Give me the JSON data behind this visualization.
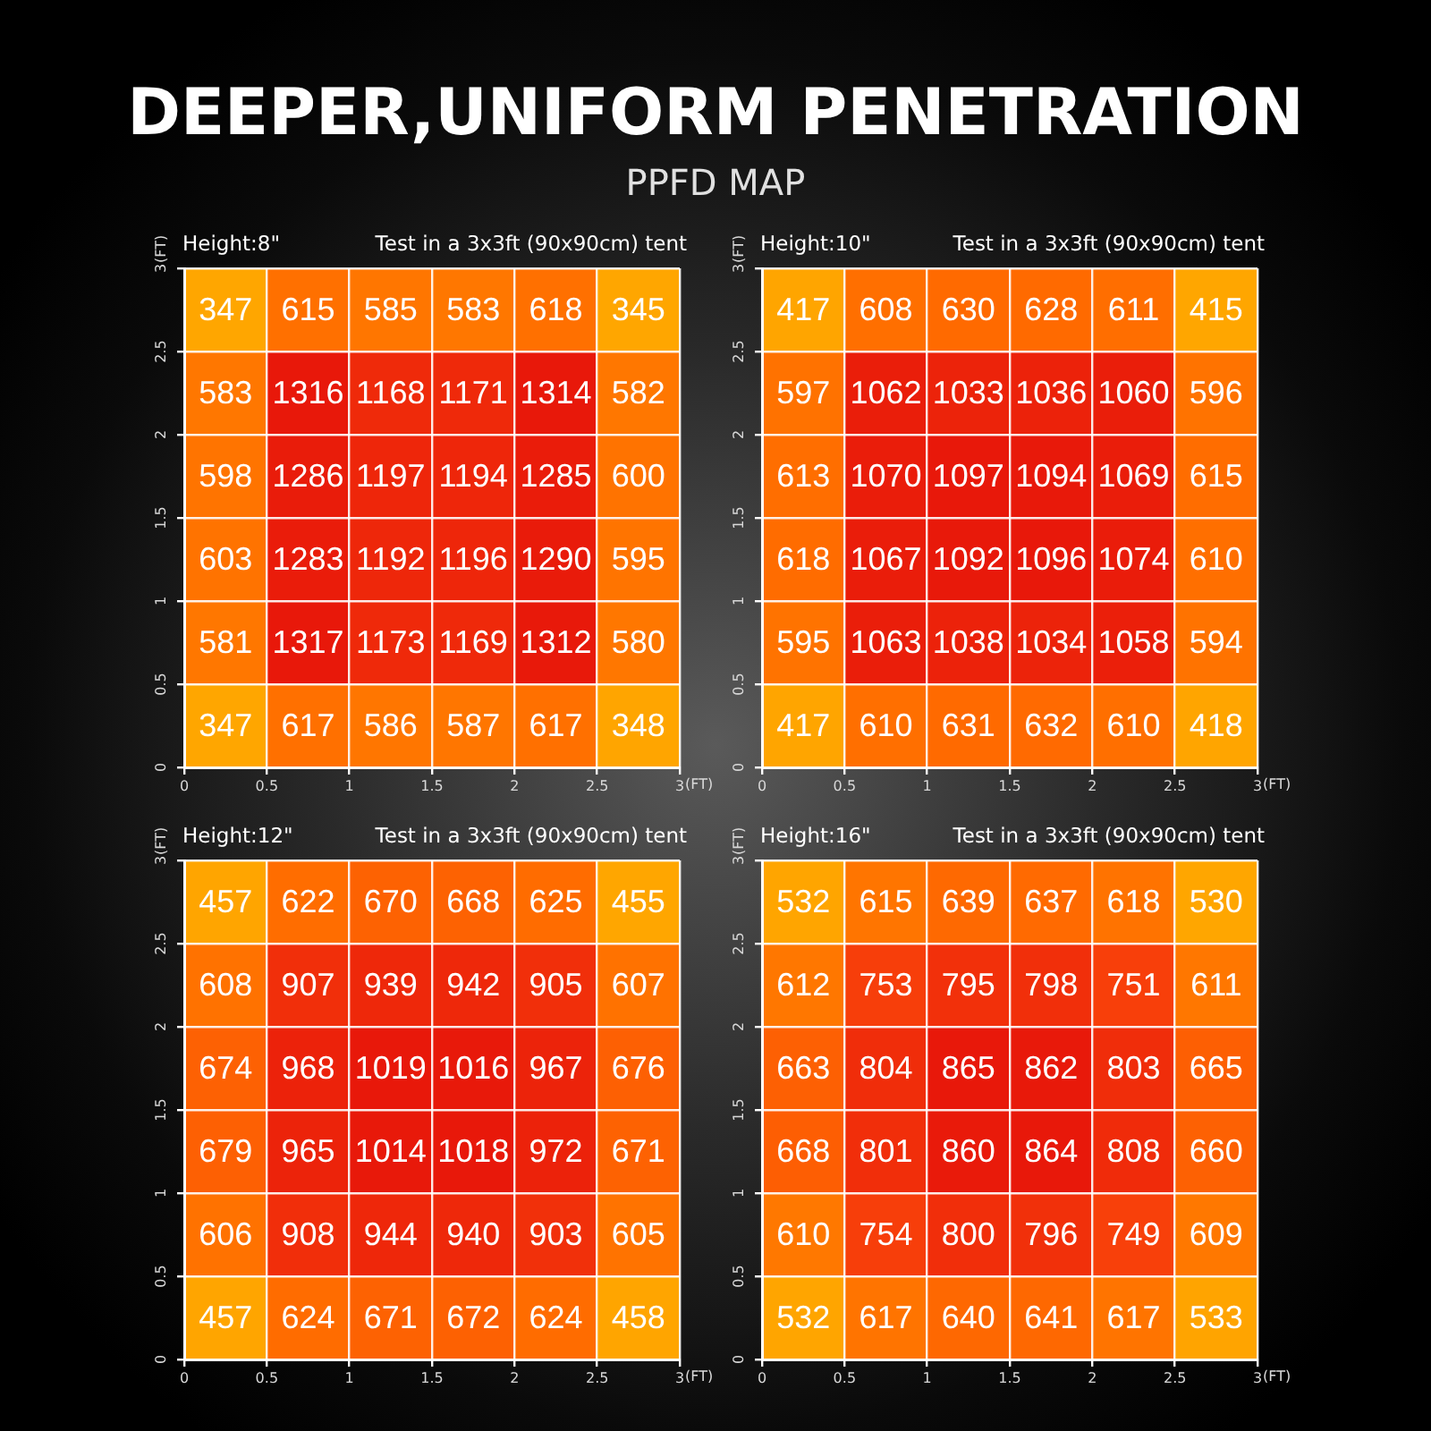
{
  "chart_data": [
    {
      "type": "other",
      "title": "DEEPER,UNIFORM PENETRATION",
      "subtitle": "PPFD MAP"
    },
    {
      "type": "heatmap",
      "title": "Height:8\"",
      "subtitle": "Test in a 3x3ft (90x90cm) tent",
      "xlabel": "(FT)",
      "ylabel": "(FT)",
      "x": [
        0.25,
        0.75,
        1.25,
        1.75,
        2.25,
        2.75
      ],
      "cells": [
        [
          347,
          615,
          585,
          583,
          618,
          345
        ],
        [
          583,
          1316,
          1168,
          1171,
          1314,
          582
        ],
        [
          598,
          1286,
          1197,
          1194,
          1285,
          600
        ],
        [
          603,
          1283,
          1192,
          1196,
          1290,
          595
        ],
        [
          581,
          1317,
          1173,
          1169,
          1312,
          580
        ],
        [
          347,
          617,
          586,
          587,
          617,
          348
        ]
      ],
      "data_labels": true,
      "xlim": [
        0,
        3
      ],
      "xticks": [
        0,
        0.5,
        1,
        1.5,
        2,
        2.5,
        3
      ],
      "ylim": [
        0,
        3
      ],
      "yticks": [
        0,
        0.5,
        1,
        1.5,
        2,
        2.5,
        3
      ],
      "grid": true
    },
    {
      "type": "heatmap",
      "title": "Height:10\"",
      "subtitle": "Test in a 3x3ft (90x90cm) tent",
      "xlabel": "(FT)",
      "ylabel": "(FT)",
      "x": [
        0.25,
        0.75,
        1.25,
        1.75,
        2.25,
        2.75
      ],
      "cells": [
        [
          417,
          608,
          630,
          628,
          611,
          415
        ],
        [
          597,
          1062,
          1033,
          1036,
          1060,
          596
        ],
        [
          613,
          1070,
          1097,
          1094,
          1069,
          615
        ],
        [
          618,
          1067,
          1092,
          1096,
          1074,
          610
        ],
        [
          595,
          1063,
          1038,
          1034,
          1058,
          594
        ],
        [
          417,
          610,
          631,
          632,
          610,
          418
        ]
      ],
      "data_labels": true,
      "xlim": [
        0,
        3
      ],
      "xticks": [
        0,
        0.5,
        1,
        1.5,
        2,
        2.5,
        3
      ],
      "ylim": [
        0,
        3
      ],
      "yticks": [
        0,
        0.5,
        1,
        1.5,
        2,
        2.5,
        3
      ],
      "grid": true
    },
    {
      "type": "heatmap",
      "title": "Height:12\"",
      "subtitle": "Test in a 3x3ft (90x90cm) tent",
      "xlabel": "(FT)",
      "ylabel": "(FT)",
      "x": [
        0.25,
        0.75,
        1.25,
        1.75,
        2.25,
        2.75
      ],
      "cells": [
        [
          457,
          622,
          670,
          668,
          625,
          455
        ],
        [
          608,
          907,
          939,
          942,
          905,
          607
        ],
        [
          674,
          968,
          1019,
          1016,
          967,
          676
        ],
        [
          679,
          965,
          1014,
          1018,
          972,
          671
        ],
        [
          606,
          908,
          944,
          940,
          903,
          605
        ],
        [
          457,
          624,
          671,
          672,
          624,
          458
        ]
      ],
      "data_labels": true,
      "xlim": [
        0,
        3
      ],
      "xticks": [
        0,
        0.5,
        1,
        1.5,
        2,
        2.5,
        3
      ],
      "ylim": [
        0,
        3
      ],
      "yticks": [
        0,
        0.5,
        1,
        1.5,
        2,
        2.5,
        3
      ],
      "grid": true
    },
    {
      "type": "heatmap",
      "title": "Height:16\"",
      "subtitle": "Test in a 3x3ft (90x90cm) tent",
      "xlabel": "(FT)",
      "ylabel": "(FT)",
      "x": [
        0.25,
        0.75,
        1.25,
        1.75,
        2.25,
        2.75
      ],
      "cells": [
        [
          532,
          615,
          639,
          637,
          618,
          530
        ],
        [
          612,
          753,
          795,
          798,
          751,
          611
        ],
        [
          663,
          804,
          865,
          862,
          803,
          665
        ],
        [
          668,
          801,
          860,
          864,
          808,
          660
        ],
        [
          610,
          754,
          800,
          796,
          749,
          609
        ],
        [
          532,
          617,
          640,
          641,
          617,
          533
        ]
      ],
      "data_labels": true,
      "xlim": [
        0,
        3
      ],
      "xticks": [
        0,
        0.5,
        1,
        1.5,
        2,
        2.5,
        3
      ],
      "ylim": [
        0,
        3
      ],
      "yticks": [
        0,
        0.5,
        1,
        1.5,
        2,
        2.5,
        3
      ],
      "grid": true
    }
  ]
}
